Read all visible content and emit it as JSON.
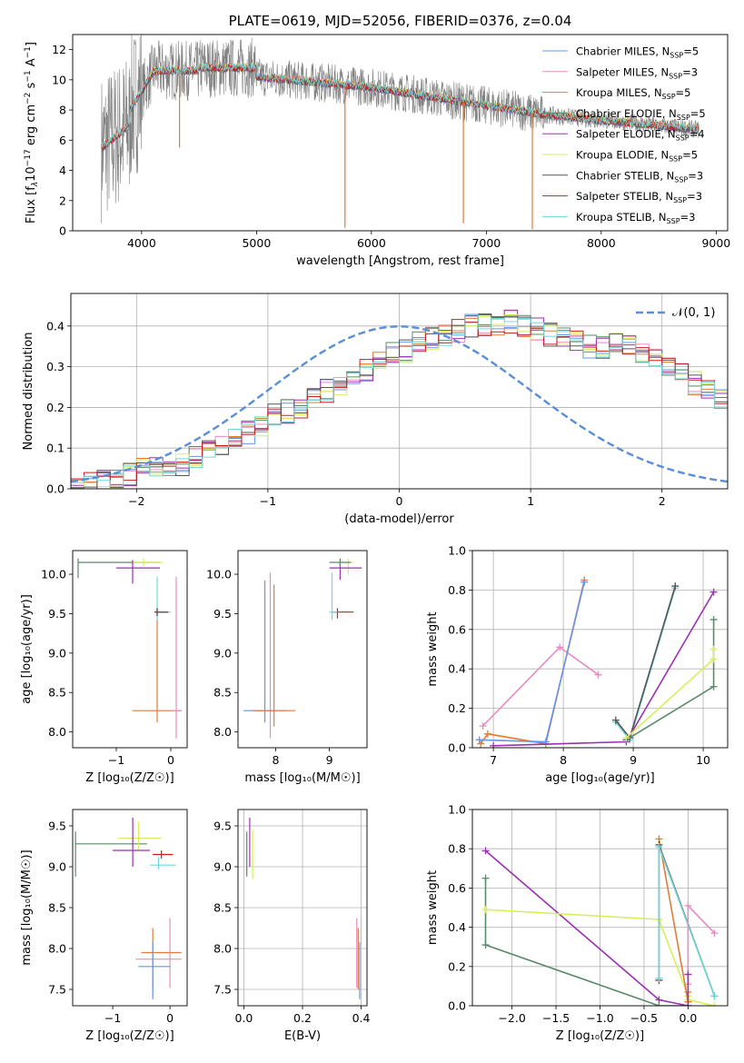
{
  "figure_title": "PLATE=0619, MJD=52056, FIBERID=0376, z=0.04",
  "colors": {
    "chabrier_miles": "#6495ed",
    "salpeter_miles": "#e88cc0",
    "kroupa_miles": "#e07b39",
    "chabrier_elodie": "#5a8a6a",
    "salpeter_elodie": "#9b30b0",
    "kroupa_elodie": "#d8ee5a",
    "chabrier_stelib": "#555555",
    "salpeter_stelib": "#c81e1e",
    "kroupa_stelib": "#70d8d8",
    "data_gray": "#808080",
    "normal_dash": "#5b8ed6"
  },
  "chart_data": [
    {
      "id": "spectrum",
      "type": "line",
      "title": "PLATE=0619, MJD=52056, FIBERID=0376, z=0.04",
      "xlabel": "wavelength [Angstrom, rest frame]",
      "ylabel_parts": [
        "Flux [f",
        "λ",
        "10",
        "−17",
        " erg cm",
        "−2",
        " s",
        "−1",
        " A",
        "−1",
        "]"
      ],
      "xlim": [
        3400,
        9100
      ],
      "ylim": [
        0,
        13
      ],
      "xticks": [
        4000,
        5000,
        6000,
        7000,
        8000,
        9000
      ],
      "yticks": [
        0,
        2,
        4,
        6,
        8,
        10,
        12
      ],
      "grid": false,
      "legend_position": "top-right",
      "legend": [
        {
          "key": "chabrier_miles",
          "text": "Chabrier MILES, N",
          "sub": "SSP",
          "tail": "=5"
        },
        {
          "key": "salpeter_miles",
          "text": "Salpeter MILES, N",
          "sub": "SSP",
          "tail": "=3"
        },
        {
          "key": "kroupa_miles",
          "text": "Kroupa MILES, N",
          "sub": "SSP",
          "tail": "=5"
        },
        {
          "key": "chabrier_elodie",
          "text": "Chabrier ELODIE, N",
          "sub": "SSP",
          "tail": "=5"
        },
        {
          "key": "salpeter_elodie",
          "text": "Salpeter ELODIE, N",
          "sub": "SSP",
          "tail": "=4"
        },
        {
          "key": "kroupa_elodie",
          "text": "Kroupa ELODIE, N",
          "sub": "SSP",
          "tail": "=5"
        },
        {
          "key": "chabrier_stelib",
          "text": "Chabrier STELIB, N",
          "sub": "SSP",
          "tail": "=3"
        },
        {
          "key": "salpeter_stelib",
          "text": "Salpeter STELIB, N",
          "sub": "SSP",
          "tail": "=3"
        },
        {
          "key": "kroupa_stelib",
          "text": "Kroupa STELIB, N",
          "sub": "SSP",
          "tail": "=3"
        }
      ],
      "data_range": [
        3650,
        8850
      ],
      "dips": [
        {
          "x": 5770,
          "y": 0.2
        },
        {
          "x": 6800,
          "y": 0.5
        },
        {
          "x": 7400,
          "y": 0.1
        },
        {
          "x": 4330,
          "y": 5.5
        }
      ]
    },
    {
      "id": "residuals",
      "type": "histogram",
      "xlabel": "(data-model)/error",
      "ylabel": "Normed distribution",
      "xlim": [
        -2.5,
        2.5
      ],
      "ylim": [
        0,
        0.48
      ],
      "xticks": [
        -2,
        -1,
        0,
        1,
        2
      ],
      "yticks": [
        0,
        0.1,
        0.2,
        0.3,
        0.4
      ],
      "grid": true,
      "legend_position": "top-right",
      "legend_label": "𝒩(0, 1)",
      "bin_width": 0.1,
      "bins_start": -2.5,
      "base_values": [
        0.012,
        0.018,
        0.025,
        0.03,
        0.035,
        0.045,
        0.05,
        0.055,
        0.06,
        0.075,
        0.09,
        0.11,
        0.12,
        0.14,
        0.16,
        0.18,
        0.19,
        0.2,
        0.22,
        0.24,
        0.26,
        0.27,
        0.29,
        0.31,
        0.33,
        0.34,
        0.36,
        0.37,
        0.38,
        0.39,
        0.4,
        0.405,
        0.4,
        0.41,
        0.4,
        0.39,
        0.38,
        0.37,
        0.36,
        0.35,
        0.35,
        0.36,
        0.35,
        0.33,
        0.32,
        0.3,
        0.28,
        0.26,
        0.24,
        0.22,
        0.2,
        0.18,
        0.16,
        0.14,
        0.13,
        0.11,
        0.1,
        0.09,
        0.08,
        0.07,
        0.06,
        0.05,
        0.045,
        0.04,
        0.035,
        0.03,
        0.025,
        0.02,
        0.018,
        0.015
      ]
    },
    {
      "id": "age_Z",
      "type": "errorbar",
      "xlabel": "Z [log₁₀(Z/Z☉)]",
      "ylabel": "age  [log₁₀(age/yr)]",
      "xlim": [
        -1.8,
        0.3
      ],
      "ylim": [
        7.8,
        10.3
      ],
      "xticks": [
        -1,
        0
      ],
      "yticks": [
        8.0,
        8.5,
        9.0,
        9.5,
        10.0
      ],
      "grid": false,
      "points": [
        {
          "key": "chabrier_elodie",
          "x": -1.7,
          "y": 10.15,
          "xerr": [
            0.0,
            1.5
          ],
          "yerr": [
            0.2,
            0.05
          ]
        },
        {
          "key": "kroupa_elodie",
          "x": -0.5,
          "y": 10.15,
          "xerr": [
            0.2,
            0.35
          ],
          "yerr": [
            0.05,
            0.05
          ]
        },
        {
          "key": "salpeter_elodie",
          "x": -0.7,
          "y": 10.08,
          "xerr": [
            0.3,
            0.5
          ],
          "yerr": [
            0.2,
            0.1
          ]
        },
        {
          "key": "kroupa_stelib",
          "x": -0.25,
          "y": 9.52,
          "xerr": [
            0.05,
            0.25
          ],
          "yerr": [
            0.1,
            0.45
          ]
        },
        {
          "key": "salpeter_stelib",
          "x": -0.25,
          "y": 9.52,
          "xerr": [
            0.05,
            0.2
          ],
          "yerr": [
            0.05,
            0.05
          ]
        },
        {
          "key": "kroupa_miles",
          "x": -0.25,
          "y": 8.27,
          "xerr": [
            0.45,
            0.45
          ],
          "yerr": [
            0.15,
            1.15
          ]
        },
        {
          "key": "salpeter_miles",
          "x": 0.1,
          "y": 8.27,
          "xerr": [
            0.1,
            0.1
          ],
          "yerr": [
            0.35,
            1.7
          ]
        },
        {
          "key": "chabrier_stelib",
          "x": -0.25,
          "y": 9.52,
          "xerr": [
            0.02,
            0.2
          ],
          "yerr": [
            0.05,
            0.05
          ]
        }
      ]
    },
    {
      "id": "age_mass",
      "type": "errorbar",
      "xlabel": "mass [log₁₀(M/M☉)]",
      "ylabel": "",
      "xlim": [
        7.3,
        9.7
      ],
      "ylim": [
        7.8,
        10.3
      ],
      "xticks": [
        8,
        9
      ],
      "yticks": [
        8.0,
        8.5,
        9.0,
        9.5,
        10.0
      ],
      "grid": false,
      "points": [
        {
          "key": "chabrier_miles",
          "x": 7.8,
          "y": 8.27,
          "xerr": [
            0.4,
            0.2
          ],
          "yerr": [
            0.15,
            1.65
          ]
        },
        {
          "key": "salpeter_miles",
          "x": 7.9,
          "y": 8.27,
          "xerr": [
            0.3,
            0.3
          ],
          "yerr": [
            0.35,
            1.75
          ]
        },
        {
          "key": "kroupa_miles",
          "x": 7.97,
          "y": 8.27,
          "xerr": [
            0.4,
            0.4
          ],
          "yerr": [
            0.2,
            1.6
          ]
        },
        {
          "key": "kroupa_elodie",
          "x": 9.35,
          "y": 10.15,
          "xerr": [
            0.15,
            0.1
          ],
          "yerr": [
            0.15,
            0.05
          ]
        },
        {
          "key": "salpeter_elodie",
          "x": 9.2,
          "y": 10.08,
          "xerr": [
            0.2,
            0.4
          ],
          "yerr": [
            0.15,
            0.1
          ]
        },
        {
          "key": "chabrier_elodie",
          "x": 9.2,
          "y": 10.15,
          "xerr": [
            0.2,
            0.2
          ],
          "yerr": [
            0.05,
            0.05
          ]
        },
        {
          "key": "salpeter_stelib",
          "x": 9.15,
          "y": 9.52,
          "xerr": [
            0.1,
            0.3
          ],
          "yerr": [
            0.08,
            0.05
          ]
        },
        {
          "key": "kroupa_stelib",
          "x": 9.05,
          "y": 9.52,
          "xerr": [
            0.05,
            0.1
          ],
          "yerr": [
            0.1,
            0.5
          ]
        }
      ]
    },
    {
      "id": "weight_age",
      "type": "line",
      "xlabel": "age  [log₁₀(age/yr)]",
      "ylabel": "mass weight",
      "xlim": [
        6.7,
        10.35
      ],
      "ylim": [
        0,
        1.0
      ],
      "xticks": [
        7,
        8,
        9,
        10
      ],
      "yticks": [
        0.0,
        0.2,
        0.4,
        0.6,
        0.8,
        1.0
      ],
      "grid": true,
      "series": [
        {
          "key": "salpeter_miles",
          "x": [
            6.85,
            7.95,
            8.5
          ],
          "y": [
            0.11,
            0.51,
            0.37
          ]
        },
        {
          "key": "kroupa_miles",
          "x": [
            6.82,
            6.92,
            7.75,
            8.3
          ],
          "y": [
            0.02,
            0.07,
            0.02,
            0.85
          ]
        },
        {
          "key": "chabrier_miles",
          "x": [
            6.8,
            7.75,
            8.3
          ],
          "y": [
            0.04,
            0.03,
            0.84
          ]
        },
        {
          "key": "kroupa_stelib",
          "x": [
            8.75,
            8.95,
            9.6
          ],
          "y": [
            0.13,
            0.04,
            0.81
          ]
        },
        {
          "key": "chabrier_stelib",
          "x": [
            8.75,
            8.95,
            9.6
          ],
          "y": [
            0.14,
            0.05,
            0.82
          ]
        },
        {
          "key": "salpeter_elodie",
          "x": [
            7.0,
            8.9,
            10.15
          ],
          "y": [
            0.01,
            0.03,
            0.79
          ]
        },
        {
          "key": "chabrier_elodie",
          "x": [
            8.9,
            10.15,
            10.15
          ],
          "y": [
            0.04,
            0.31,
            0.65
          ]
        },
        {
          "key": "kroupa_elodie",
          "x": [
            8.9,
            10.15,
            10.15
          ],
          "y": [
            0.05,
            0.45,
            0.5
          ]
        }
      ]
    },
    {
      "id": "mass_Z",
      "type": "errorbar",
      "xlabel": "Z [log₁₀(Z/Z☉)]",
      "ylabel": "mass [log₁₀(M/M☉)]",
      "xlim": [
        -1.7,
        0.3
      ],
      "ylim": [
        7.3,
        9.7
      ],
      "xticks": [
        -1,
        0
      ],
      "yticks": [
        7.5,
        8.0,
        8.5,
        9.0,
        9.5
      ],
      "grid": false,
      "points": [
        {
          "key": "chabrier_elodie",
          "x": -1.65,
          "y": 9.28,
          "xerr": [
            0.0,
            1.25
          ],
          "yerr": [
            0.4,
            0.15
          ]
        },
        {
          "key": "kroupa_elodie",
          "x": -0.55,
          "y": 9.35,
          "xerr": [
            0.35,
            0.4
          ],
          "yerr": [
            0.15,
            0.2
          ]
        },
        {
          "key": "salpeter_elodie",
          "x": -0.65,
          "y": 9.2,
          "xerr": [
            0.35,
            0.3
          ],
          "yerr": [
            0.2,
            0.4
          ]
        },
        {
          "key": "salpeter_stelib",
          "x": -0.15,
          "y": 9.15,
          "xerr": [
            0.15,
            0.2
          ],
          "yerr": [
            0.05,
            0.05
          ]
        },
        {
          "key": "kroupa_stelib",
          "x": -0.2,
          "y": 9.02,
          "xerr": [
            0.15,
            0.3
          ],
          "yerr": [
            0.05,
            0.1
          ]
        },
        {
          "key": "kroupa_miles",
          "x": -0.3,
          "y": 7.95,
          "xerr": [
            0.2,
            0.5
          ],
          "yerr": [
            0.45,
            0.3
          ]
        },
        {
          "key": "salpeter_miles",
          "x": 0.0,
          "y": 7.87,
          "xerr": [
            0.6,
            0.2
          ],
          "yerr": [
            0.35,
            0.5
          ]
        },
        {
          "key": "chabrier_miles",
          "x": -0.3,
          "y": 7.78,
          "xerr": [
            0.25,
            0.3
          ],
          "yerr": [
            0.4,
            0.3
          ]
        }
      ]
    },
    {
      "id": "mass_EBV",
      "type": "errorbar",
      "xlabel": "E(B-V)",
      "ylabel": "",
      "xlim": [
        -0.02,
        0.42
      ],
      "ylim": [
        7.3,
        9.7
      ],
      "xticks": [
        0.0,
        0.2,
        0.4
      ],
      "yticks": [
        7.5,
        8.0,
        8.5,
        9.0,
        9.5
      ],
      "grid": true,
      "points": [
        {
          "key": "chabrier_elodie",
          "x": 0.01,
          "y": 9.28,
          "xerr": [
            0.0,
            0.0
          ],
          "yerr": [
            0.4,
            0.15
          ]
        },
        {
          "key": "salpeter_elodie",
          "x": 0.02,
          "y": 9.2,
          "xerr": [
            0.0,
            0.0
          ],
          "yerr": [
            0.2,
            0.4
          ]
        },
        {
          "key": "kroupa_elodie",
          "x": 0.03,
          "y": 9.1,
          "xerr": [
            0.0,
            0.0
          ],
          "yerr": [
            0.25,
            0.35
          ]
        },
        {
          "key": "kroupa_miles",
          "x": 0.39,
          "y": 7.95,
          "xerr": [
            0.0,
            0.0
          ],
          "yerr": [
            0.45,
            0.3
          ]
        },
        {
          "key": "salpeter_miles",
          "x": 0.385,
          "y": 7.87,
          "xerr": [
            0.0,
            0.0
          ],
          "yerr": [
            0.35,
            0.5
          ]
        },
        {
          "key": "chabrier_miles",
          "x": 0.395,
          "y": 7.78,
          "xerr": [
            0.0,
            0.0
          ],
          "yerr": [
            0.4,
            0.3
          ]
        }
      ]
    },
    {
      "id": "weight_Z",
      "type": "line",
      "xlabel": "Z [log₁₀(Z/Z☉)]",
      "ylabel": "mass weight",
      "xlim": [
        -2.45,
        0.45
      ],
      "ylim": [
        0,
        1.0
      ],
      "xticks": [
        -2.0,
        -1.5,
        -1.0,
        -0.5,
        0.0
      ],
      "yticks": [
        0.0,
        0.2,
        0.4,
        0.6,
        0.8,
        1.0
      ],
      "grid": true,
      "series": [
        {
          "key": "salpeter_elodie",
          "x": [
            -2.3,
            -0.33,
            0.0
          ],
          "y": [
            0.79,
            0.03,
            0.0
          ]
        },
        {
          "key": "chabrier_elodie",
          "x": [
            -2.3,
            -2.3,
            -0.33,
            0.0
          ],
          "y": [
            0.65,
            0.31,
            0.0,
            0.0
          ]
        },
        {
          "key": "kroupa_elodie",
          "x": [
            -2.3,
            -0.33,
            0.0,
            0.0,
            0.3
          ],
          "y": [
            0.49,
            0.44,
            0.05,
            0.03,
            0.0
          ]
        },
        {
          "key": "kroupa_miles",
          "x": [
            -0.33,
            0.0,
            0.0
          ],
          "y": [
            0.85,
            0.02,
            0.07
          ]
        },
        {
          "key": "chabrier_stelib",
          "x": [
            -0.33,
            -0.33,
            0.3
          ],
          "y": [
            0.13,
            0.82,
            0.05
          ]
        },
        {
          "key": "kroupa_stelib",
          "x": [
            -0.33,
            -0.33,
            0.3
          ],
          "y": [
            0.14,
            0.81,
            0.05
          ]
        },
        {
          "key": "salpeter_miles",
          "x": [
            0.0,
            0.0,
            0.3
          ],
          "y": [
            0.11,
            0.51,
            0.37
          ]
        },
        {
          "key": "salpeter_elodie_b",
          "x": [
            0.0,
            0.0
          ],
          "y": [
            0.16,
            0.0
          ]
        }
      ]
    }
  ]
}
